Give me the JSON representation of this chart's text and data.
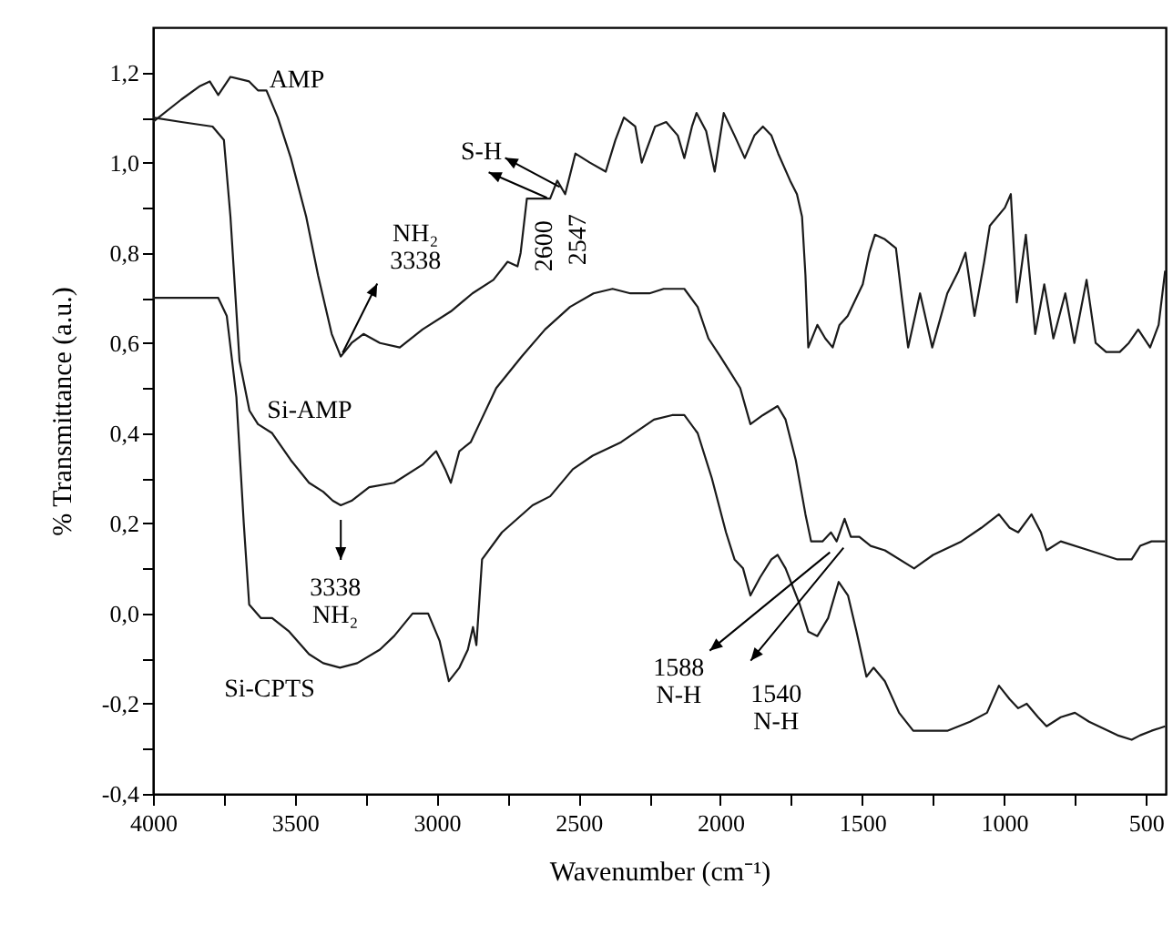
{
  "chart_data": {
    "type": "line",
    "xlabel": "Wavenumber (cm⁻¹)",
    "ylabel": "% Transmittance (a.u.)",
    "xlim": [
      4000,
      430
    ],
    "ylim": [
      -0.4,
      1.3
    ],
    "xticks": [
      4000,
      {
        "value": 3750,
        "label": null
      },
      3500,
      {
        "value": 3250,
        "label": null
      },
      3000,
      {
        "value": 2750,
        "label": null
      },
      2500,
      {
        "value": 2250,
        "label": null
      },
      2000,
      {
        "value": 1750,
        "label": null
      },
      1500,
      {
        "value": 1250,
        "label": null
      },
      1000,
      {
        "value": 750,
        "label": null
      },
      500
    ],
    "yticks": [
      {
        "value": -0.4,
        "label": "-0,4"
      },
      {
        "value": -0.3,
        "label": null
      },
      {
        "value": -0.2,
        "label": "-0,2"
      },
      {
        "value": -0.1,
        "label": null
      },
      {
        "value": 0,
        "label": "0,0"
      },
      {
        "value": 0.1,
        "label": null
      },
      {
        "value": 0.2,
        "label": "0,2"
      },
      {
        "value": 0.3,
        "label": null
      },
      {
        "value": 0.4,
        "label": "0,4"
      },
      {
        "value": 0.5,
        "label": null
      },
      {
        "value": 0.6,
        "label": "0,6"
      },
      {
        "value": 0.7,
        "label": null
      },
      {
        "value": 0.8,
        "label": "0,8"
      },
      {
        "value": 0.9,
        "label": null
      },
      {
        "value": 1.0,
        "label": "1,0"
      },
      {
        "value": 1.1,
        "label": null
      },
      {
        "value": 1.2,
        "label": "1,2"
      }
    ],
    "series": [
      {
        "name": "AMP",
        "color": "#1a1a1a",
        "x": [
          4000,
          3900,
          3834,
          3800,
          3770,
          3727,
          3661,
          3630,
          3600,
          3560,
          3514,
          3460,
          3418,
          3370,
          3338,
          3300,
          3258,
          3200,
          3130,
          3050,
          2950,
          2874,
          2800,
          2750,
          2715,
          2704,
          2682,
          2640,
          2600,
          2575,
          2547,
          2511,
          2460,
          2404,
          2370,
          2340,
          2300,
          2277,
          2230,
          2191,
          2150,
          2127,
          2100,
          2084,
          2050,
          2020,
          1988,
          1950,
          1914,
          1880,
          1850,
          1820,
          1796,
          1754,
          1730,
          1712,
          1700,
          1690,
          1658,
          1630,
          1604,
          1580,
          1551,
          1498,
          1475,
          1455,
          1420,
          1381,
          1360,
          1338,
          1296,
          1253,
          1200,
          1160,
          1136,
          1104,
          1070,
          1050,
          997,
          976,
          955,
          923,
          890,
          858,
          826,
          784,
          752,
          709,
          677,
          640,
          592,
          560,
          527,
          485,
          455,
          432
        ],
        "values": [
          1.09,
          1.14,
          1.17,
          1.18,
          1.15,
          1.19,
          1.18,
          1.16,
          1.16,
          1.1,
          1.01,
          0.88,
          0.75,
          0.62,
          0.57,
          0.6,
          0.62,
          0.6,
          0.59,
          0.63,
          0.67,
          0.71,
          0.74,
          0.78,
          0.77,
          0.8,
          0.92,
          0.92,
          0.92,
          0.96,
          0.93,
          1.02,
          1.0,
          0.98,
          1.05,
          1.1,
          1.08,
          1.0,
          1.08,
          1.09,
          1.06,
          1.01,
          1.08,
          1.11,
          1.07,
          0.98,
          1.11,
          1.06,
          1.01,
          1.06,
          1.08,
          1.06,
          1.02,
          0.96,
          0.93,
          0.88,
          0.75,
          0.59,
          0.64,
          0.61,
          0.59,
          0.64,
          0.66,
          0.73,
          0.8,
          0.84,
          0.83,
          0.81,
          0.7,
          0.59,
          0.71,
          0.59,
          0.71,
          0.76,
          0.8,
          0.66,
          0.78,
          0.86,
          0.9,
          0.93,
          0.69,
          0.84,
          0.62,
          0.73,
          0.61,
          0.71,
          0.6,
          0.74,
          0.6,
          0.58,
          0.58,
          0.6,
          0.63,
          0.59,
          0.64,
          0.76
        ]
      },
      {
        "name": "Si-AMP",
        "color": "#1a1a1a",
        "x": [
          4000,
          3900,
          3790,
          3750,
          3727,
          3695,
          3660,
          3630,
          3580,
          3514,
          3450,
          3400,
          3366,
          3338,
          3300,
          3238,
          3150,
          3050,
          3002,
          2970,
          2950,
          2920,
          2880,
          2850,
          2790,
          2700,
          2618,
          2530,
          2447,
          2380,
          2317,
          2250,
          2200,
          2127,
          2080,
          2042,
          2000,
          1970,
          1930,
          1894,
          1850,
          1798,
          1770,
          1734,
          1700,
          1680,
          1640,
          1610,
          1590,
          1562,
          1540,
          1510,
          1470,
          1420,
          1317,
          1250,
          1150,
          1080,
          1018,
          980,
          950,
          903,
          870,
          850,
          800,
          700,
          600,
          550,
          520,
          480,
          432
        ],
        "values": [
          1.1,
          1.09,
          1.08,
          1.05,
          0.88,
          0.56,
          0.45,
          0.42,
          0.4,
          0.34,
          0.29,
          0.27,
          0.25,
          0.24,
          0.25,
          0.28,
          0.29,
          0.33,
          0.36,
          0.32,
          0.29,
          0.36,
          0.38,
          0.42,
          0.5,
          0.57,
          0.63,
          0.68,
          0.71,
          0.72,
          0.71,
          0.71,
          0.72,
          0.72,
          0.68,
          0.61,
          0.57,
          0.54,
          0.5,
          0.42,
          0.44,
          0.46,
          0.43,
          0.34,
          0.22,
          0.16,
          0.16,
          0.18,
          0.16,
          0.21,
          0.17,
          0.17,
          0.15,
          0.14,
          0.1,
          0.13,
          0.16,
          0.19,
          0.22,
          0.19,
          0.18,
          0.22,
          0.18,
          0.14,
          0.16,
          0.14,
          0.12,
          0.12,
          0.15,
          0.16,
          0.16
        ]
      },
      {
        "name": "Si-CPTS",
        "color": "#1a1a1a",
        "x": [
          4000,
          3850,
          3770,
          3740,
          3706,
          3680,
          3661,
          3620,
          3580,
          3520,
          3450,
          3400,
          3341,
          3280,
          3200,
          3150,
          3085,
          3030,
          2990,
          2957,
          2920,
          2890,
          2872,
          2860,
          2840,
          2770,
          2662,
          2600,
          2520,
          2450,
          2350,
          2234,
          2170,
          2127,
          2080,
          2030,
          1980,
          1950,
          1920,
          1894,
          1860,
          1820,
          1798,
          1770,
          1720,
          1690,
          1658,
          1620,
          1583,
          1550,
          1520,
          1485,
          1460,
          1420,
          1370,
          1320,
          1293,
          1200,
          1120,
          1060,
          1018,
          980,
          950,
          920,
          880,
          850,
          800,
          750,
          700,
          600,
          550,
          520,
          480,
          432
        ],
        "values": [
          0.7,
          0.7,
          0.7,
          0.66,
          0.48,
          0.2,
          0.02,
          -0.01,
          -0.01,
          -0.04,
          -0.09,
          -0.11,
          -0.12,
          -0.11,
          -0.08,
          -0.05,
          0.0,
          0.0,
          -0.06,
          -0.15,
          -0.12,
          -0.08,
          -0.03,
          -0.07,
          0.12,
          0.18,
          0.24,
          0.26,
          0.32,
          0.35,
          0.38,
          0.43,
          0.44,
          0.44,
          0.4,
          0.3,
          0.18,
          0.12,
          0.1,
          0.04,
          0.08,
          0.12,
          0.13,
          0.1,
          0.02,
          -0.04,
          -0.05,
          -0.01,
          0.07,
          0.04,
          -0.04,
          -0.14,
          -0.12,
          -0.15,
          -0.22,
          -0.26,
          -0.26,
          -0.26,
          -0.24,
          -0.22,
          -0.16,
          -0.19,
          -0.21,
          -0.2,
          -0.23,
          -0.25,
          -0.23,
          -0.22,
          -0.24,
          -0.27,
          -0.28,
          -0.27,
          -0.26,
          -0.25
        ]
      }
    ],
    "annotations": [
      {
        "text": "NH₂ 3338",
        "x": 3338,
        "y": 0.57
      },
      {
        "text": "S-H",
        "x": 2547,
        "y": 0.93
      },
      {
        "text": "2600",
        "x": 2600,
        "y": 0.92
      },
      {
        "text": "2547",
        "x": 2547,
        "y": 0.93
      },
      {
        "text": "3338 NH₂",
        "x": 3338,
        "y": 0.24
      },
      {
        "text": "1588 N-H",
        "x": 1588,
        "y": 0.16
      },
      {
        "text": "1540 N-H",
        "x": 1540,
        "y": 0.17
      }
    ]
  }
}
